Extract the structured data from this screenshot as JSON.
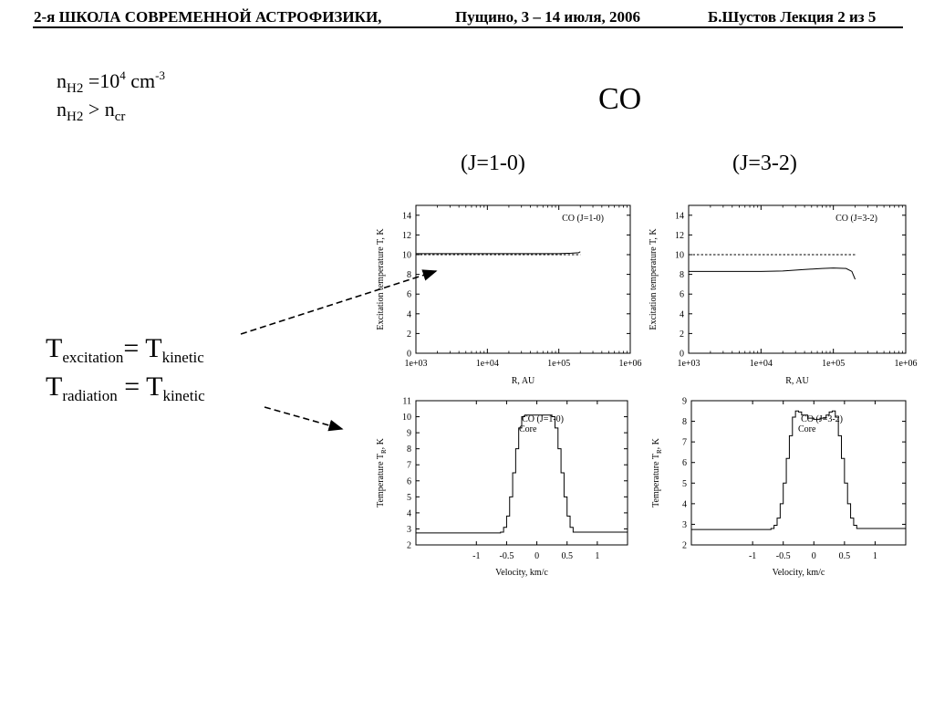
{
  "header": {
    "school": "2-я ШКОЛА СОВРЕМЕННОЙ АСТРОФИЗИКИ,",
    "place_date": "Пущино, 3 – 14 июля, 2006",
    "lecture": "Б.Шустов Лекция 2 из 5"
  },
  "conditions": {
    "line1": {
      "n": "n",
      "sub": "H2",
      "eq": " =10",
      "sup1": "4",
      "unit": " cm",
      "sup2": "-3"
    },
    "line2": {
      "n": "n",
      "sub": "H2",
      "rel": " > n",
      "sub2": "cr"
    }
  },
  "title": "CO",
  "columns": [
    "(J=1-0)",
    "(J=3-2)"
  ],
  "equations": {
    "eq1": {
      "t": "T",
      "sub": "excitation",
      "eq": "= T",
      "sub2": "kinetic"
    },
    "eq2": {
      "t": "T",
      "sub": "radiation",
      "eq": " = T",
      "sub2": "kinetic"
    }
  },
  "chart_data": [
    {
      "type": "line",
      "label": "CO (J=1-0)",
      "xlabel": "R, AU",
      "ylabel": "Excitation temperature T, K",
      "xscale": "log",
      "xlim": [
        1000,
        1000000
      ],
      "ylim": [
        0,
        15
      ],
      "xticks": [
        "1e+03",
        "1e+04",
        "1e+05",
        "1e+06"
      ],
      "yticks": [
        0,
        2,
        4,
        6,
        8,
        10,
        12,
        14
      ],
      "series": [
        {
          "style": "solid",
          "x": [
            1000,
            5000,
            20000,
            100000,
            150000,
            190000,
            200000
          ],
          "y": [
            10.1,
            10.1,
            10.1,
            10.1,
            10.15,
            10.2,
            10.3
          ]
        },
        {
          "style": "dashed",
          "x": [
            1000,
            200000
          ],
          "y": [
            10.0,
            10.0
          ]
        }
      ]
    },
    {
      "type": "line",
      "label": "CO (J=3-2)",
      "xlabel": "R, AU",
      "ylabel": "Excitation temperature T, K",
      "xscale": "log",
      "xlim": [
        1000,
        1000000
      ],
      "ylim": [
        0,
        15
      ],
      "xticks": [
        "1e+03",
        "1e+04",
        "1e+05",
        "1e+06"
      ],
      "yticks": [
        0,
        2,
        4,
        6,
        8,
        10,
        12,
        14
      ],
      "series": [
        {
          "style": "solid",
          "x": [
            1000,
            10000,
            20000,
            40000,
            70000,
            100000,
            150000,
            180000,
            200000
          ],
          "y": [
            8.3,
            8.3,
            8.35,
            8.5,
            8.6,
            8.65,
            8.6,
            8.3,
            7.5
          ]
        },
        {
          "style": "dashed",
          "x": [
            1000,
            200000
          ],
          "y": [
            10.0,
            10.0
          ]
        }
      ]
    },
    {
      "type": "line",
      "label": "CO (J=1-0)",
      "label2": "Core",
      "xlabel": "Velocity, km/c",
      "ylabel": "Temperature T",
      "ylabel_sub": "R",
      "ylabel_end": ", K",
      "xlim": [
        -2,
        1.5
      ],
      "ylim": [
        2,
        11
      ],
      "xticks": [
        -1,
        -0.5,
        0,
        0.5,
        1
      ],
      "yticks": [
        2,
        3,
        4,
        5,
        6,
        7,
        8,
        9,
        10,
        11
      ],
      "series": [
        {
          "style": "step",
          "x": [
            -2,
            -0.6,
            -0.55,
            -0.5,
            -0.45,
            -0.4,
            -0.35,
            -0.3,
            -0.25,
            -0.2,
            0.2,
            0.25,
            0.3,
            0.35,
            0.4,
            0.45,
            0.5,
            0.55,
            0.6,
            1.5
          ],
          "y": [
            2.75,
            2.8,
            3.1,
            3.8,
            5.0,
            6.5,
            8.0,
            9.3,
            10.0,
            10.1,
            10.1,
            10.0,
            9.3,
            8.0,
            6.5,
            5.0,
            3.8,
            3.1,
            2.8,
            2.75
          ]
        }
      ]
    },
    {
      "type": "line",
      "label": "CO (J=3-2)",
      "label2": "Core",
      "xlabel": "Velocity, km/c",
      "ylabel": "Temperature T",
      "ylabel_sub": "R",
      "ylabel_end": ", K",
      "xlim": [
        -2,
        1.5
      ],
      "ylim": [
        2,
        9
      ],
      "xticks": [
        -1,
        -0.5,
        0,
        0.5,
        1
      ],
      "yticks": [
        2,
        3,
        4,
        5,
        6,
        7,
        8,
        9
      ],
      "series": [
        {
          "style": "step",
          "x": [
            -2,
            -0.7,
            -0.65,
            -0.6,
            -0.55,
            -0.5,
            -0.45,
            -0.4,
            -0.35,
            -0.3,
            -0.25,
            -0.2,
            -0.1,
            0,
            0.1,
            0.2,
            0.25,
            0.3,
            0.35,
            0.4,
            0.45,
            0.5,
            0.55,
            0.6,
            0.65,
            0.7,
            1.5
          ],
          "y": [
            2.75,
            2.8,
            2.95,
            3.3,
            4.0,
            5.0,
            6.2,
            7.3,
            8.2,
            8.5,
            8.45,
            8.3,
            8.15,
            8.1,
            8.15,
            8.3,
            8.45,
            8.5,
            8.2,
            7.3,
            6.2,
            5.0,
            4.0,
            3.3,
            2.95,
            2.8,
            2.75
          ]
        }
      ]
    }
  ]
}
